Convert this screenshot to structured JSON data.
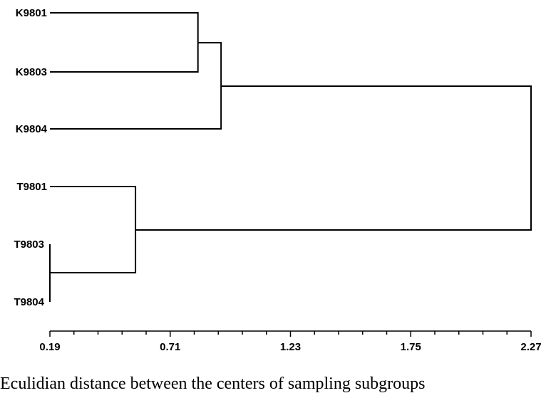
{
  "dendrogram": {
    "leaves": [
      "K9801",
      "K9803",
      "K9804",
      "T9801",
      "T9803",
      "T9804"
    ],
    "merges": [
      {
        "a": "T9803",
        "b": "T9804",
        "height": 0.19
      },
      {
        "a": "T9801",
        "b": "T9803+T9804",
        "height": 0.56
      },
      {
        "a": "K9801",
        "b": "K9803",
        "height": 0.83
      },
      {
        "a": "K9801+K9803",
        "b": "K9804",
        "height": 0.93
      },
      {
        "a": "K-cluster",
        "b": "T-cluster",
        "height": 2.27
      }
    ]
  },
  "axis": {
    "min": 0.19,
    "max": 2.27,
    "ticks": [
      "0.19",
      "0.71",
      "1.23",
      "1.75",
      "2.27"
    ]
  },
  "caption": "Eculidian distance between the centers of sampling subgroups"
}
